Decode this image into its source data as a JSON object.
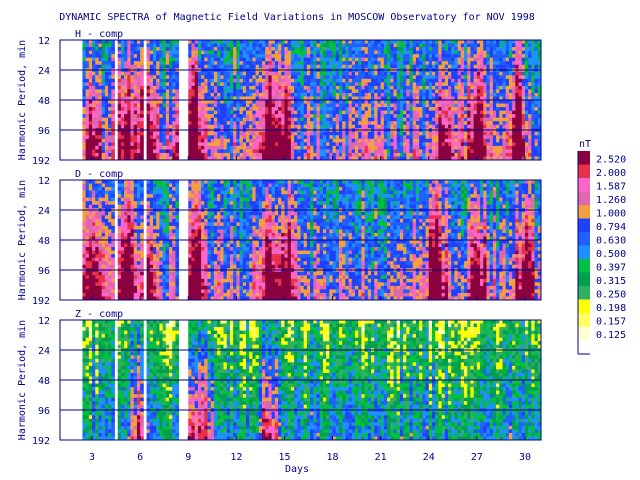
{
  "chart_data": {
    "type": "heatmap",
    "title": "DYNAMIC SPECTRA of Magnetic Field Variations in MOSCOW Observatory for NOV 1998",
    "xlabel": "Days",
    "ylabel": "Harmonic Period, min",
    "x_ticks": [
      "3",
      "6",
      "9",
      "12",
      "15",
      "18",
      "21",
      "24",
      "27",
      "30"
    ],
    "y_ticks": [
      "12",
      "24",
      "48",
      "96",
      "192"
    ],
    "xlim": [
      1,
      31
    ],
    "y_scale": "log2",
    "ylim": [
      12,
      192
    ],
    "grid": true,
    "panels": [
      {
        "label": "H - comp",
        "mean_level": 6,
        "intense_days": [
          3,
          5,
          6.5,
          8.5,
          9.5,
          14,
          15,
          25,
          27,
          29.5
        ]
      },
      {
        "label": "D - comp",
        "mean_level": 6,
        "intense_days": [
          3,
          5,
          6.5,
          9.5,
          14,
          15,
          24.5,
          27,
          30
        ]
      },
      {
        "label": "Z - comp",
        "mean_level": 3,
        "intense_days": [
          6,
          9,
          10,
          14
        ]
      }
    ],
    "data_gaps_days": [
      [
        1,
        2.5
      ],
      [
        4.5,
        4.6
      ],
      [
        6.3,
        6.5
      ],
      [
        8.4,
        8.9
      ]
    ],
    "colorbar": {
      "unit": "nT",
      "levels": [
        "2.520",
        "2.000",
        "1.587",
        "1.260",
        "1.000",
        "0.794",
        "0.630",
        "0.500",
        "0.397",
        "0.315",
        "0.250",
        "0.198",
        "0.157",
        "0.125"
      ],
      "colors": [
        "#8b003e",
        "#e8304a",
        "#ff66c8",
        "#e066b0",
        "#f5a040",
        "#2040ff",
        "#2060ff",
        "#2090ff",
        "#00c040",
        "#00a050",
        "#30b060",
        "#ffff00",
        "#ffff60",
        "#ffffd0"
      ]
    },
    "colors": {
      "frame": "#00008b",
      "grid": "#00008b",
      "text": "#00008b"
    }
  }
}
